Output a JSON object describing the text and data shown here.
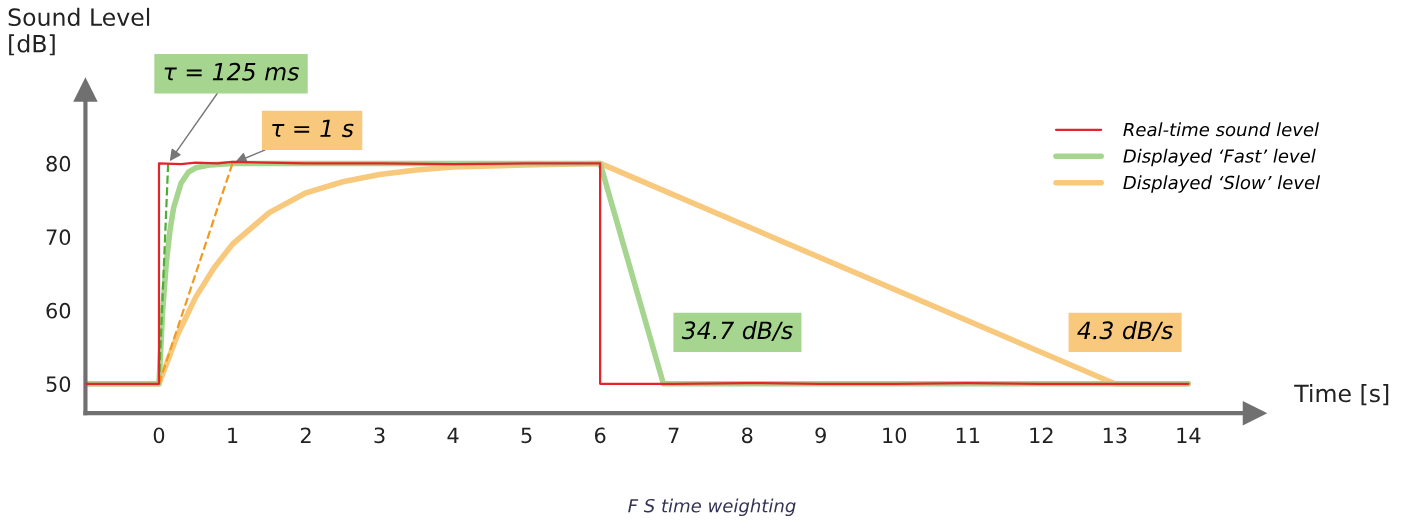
{
  "chart_data": {
    "type": "line",
    "xlabel": "Time [s]",
    "ylabel": "Sound Level\n[dB]",
    "xlim": [
      -1,
      14.9
    ],
    "ylim": [
      46,
      90
    ],
    "xticks": [
      0,
      1,
      2,
      3,
      4,
      5,
      6,
      7,
      8,
      9,
      10,
      11,
      12,
      13,
      14
    ],
    "yticks": [
      50,
      60,
      70,
      80
    ],
    "grid": false,
    "legend": "top right",
    "marker": "none",
    "series": [
      {
        "name": "Displayed ‘Slow’ level",
        "color": "#f8c97d",
        "line_style": "solid",
        "x": [
          -1,
          0,
          0.25,
          0.5,
          0.75,
          1,
          1.5,
          2,
          2.5,
          3,
          3.5,
          4,
          5,
          6,
          13,
          14
        ],
        "values": [
          50,
          50,
          56.6,
          61.8,
          65.8,
          69,
          73.3,
          76,
          77.5,
          78.5,
          79.1,
          79.5,
          79.8,
          80,
          50,
          50
        ]
      },
      {
        "name": "Displayed ‘Fast’ level",
        "color": "#a6d58f",
        "line_style": "solid",
        "x": [
          -1,
          0,
          0.05,
          0.1,
          0.15,
          0.2,
          0.3,
          0.4,
          0.5,
          0.7,
          1,
          6,
          6.86,
          14
        ],
        "values": [
          50,
          50,
          59.9,
          66.5,
          70.9,
          74,
          77.3,
          78.8,
          79.4,
          79.8,
          80,
          80,
          50,
          50
        ]
      },
      {
        "color": "#4caf35",
        "type": "line",
        "line_style": "dashed",
        "x": [
          0,
          0.125
        ],
        "values": [
          50,
          80
        ]
      },
      {
        "color": "#f39a1e",
        "type": "line",
        "line_style": "dashed",
        "x": [
          0,
          1
        ],
        "values": [
          50,
          80
        ]
      },
      {
        "name": "Real-time sound level",
        "color": "#e3242b",
        "line_style": "solid",
        "x": [
          -1,
          0,
          0,
          0.3,
          0.5,
          0.8,
          1,
          2,
          3,
          4,
          5,
          6,
          6,
          7,
          8,
          9,
          10,
          11,
          12,
          13,
          14
        ],
        "values": [
          50,
          50,
          80,
          79.9,
          80.1,
          80,
          80.2,
          80,
          80,
          79.9,
          80,
          80,
          50,
          50,
          50.1,
          50,
          50,
          50.1,
          50,
          50,
          50
        ]
      }
    ],
    "annotations": [
      {
        "text": "τ = 125 ms",
        "x": 0.125,
        "y": 80
      },
      {
        "text": "τ = 1 s",
        "x": 1,
        "y": 80
      },
      "34.7 dB/s",
      "4.3 dB/s",
      "F S time weighting"
    ]
  }
}
